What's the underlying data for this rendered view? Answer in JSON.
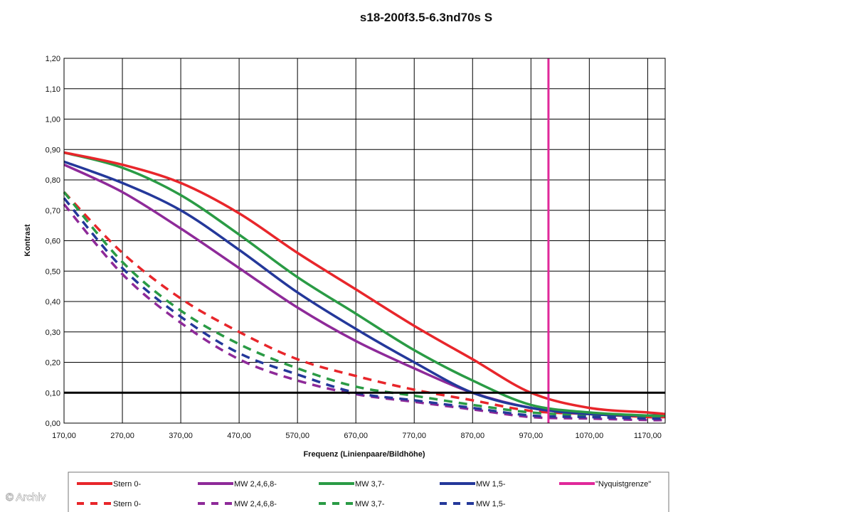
{
  "chart_data": {
    "type": "line",
    "title": "s18-200f3.5-6.3nd70s S",
    "xlabel": "Frequenz (Linienpaare/Bildhöhe)",
    "ylabel": "Kontrast",
    "xlim": [
      170,
      1200
    ],
    "ylim": [
      0,
      1.2
    ],
    "x_ticks": [
      170,
      270,
      370,
      470,
      570,
      670,
      770,
      870,
      970,
      1070,
      1170
    ],
    "x_tick_labels": [
      "170,00",
      "270,00",
      "370,00",
      "470,00",
      "570,00",
      "670,00",
      "770,00",
      "870,00",
      "970,00",
      "1070,00",
      "1170,00"
    ],
    "y_ticks": [
      0,
      0.1,
      0.2,
      0.3,
      0.4,
      0.5,
      0.6,
      0.7,
      0.8,
      0.9,
      1.0,
      1.1,
      1.2
    ],
    "y_tick_labels": [
      "0,00",
      "0,10",
      "0,20",
      "0,30",
      "0,40",
      "0,50",
      "0,60",
      "0,70",
      "0,80",
      "0,90",
      "1,00",
      "1,10",
      "1,20"
    ],
    "grid": true,
    "legend_position": "bottom",
    "x": [
      170,
      270,
      370,
      470,
      570,
      670,
      770,
      870,
      970,
      1070,
      1170,
      1200
    ],
    "series": [
      {
        "name": "Stern 0-",
        "color": "#e8262b",
        "dash": false,
        "values": [
          0.89,
          0.85,
          0.79,
          0.69,
          0.56,
          0.44,
          0.32,
          0.21,
          0.1,
          0.05,
          0.035,
          0.03
        ]
      },
      {
        "name": "MW 2,4,6,8-",
        "color": "#8e2a99",
        "dash": false,
        "values": [
          0.85,
          0.76,
          0.64,
          0.51,
          0.38,
          0.27,
          0.18,
          0.1,
          0.05,
          0.03,
          0.025,
          0.025
        ]
      },
      {
        "name": "MW 3,7-",
        "color": "#2a9b45",
        "dash": false,
        "values": [
          0.89,
          0.84,
          0.75,
          0.62,
          0.48,
          0.36,
          0.24,
          0.14,
          0.06,
          0.035,
          0.025,
          0.025
        ]
      },
      {
        "name": "MW 1,5-",
        "color": "#24389a",
        "dash": false,
        "values": [
          0.86,
          0.79,
          0.7,
          0.57,
          0.43,
          0.31,
          0.2,
          0.1,
          0.05,
          0.03,
          0.025,
          0.03
        ]
      },
      {
        "name": "Stern 0-",
        "color": "#e8262b",
        "dash": true,
        "values": [
          0.76,
          0.56,
          0.41,
          0.3,
          0.21,
          0.155,
          0.11,
          0.075,
          0.04,
          0.03,
          0.02,
          0.02
        ]
      },
      {
        "name": "MW 2,4,6,8-",
        "color": "#8e2a99",
        "dash": true,
        "values": [
          0.72,
          0.49,
          0.33,
          0.21,
          0.14,
          0.095,
          0.07,
          0.045,
          0.02,
          0.015,
          0.01,
          0.01
        ]
      },
      {
        "name": "MW 3,7-",
        "color": "#2a9b45",
        "dash": true,
        "values": [
          0.76,
          0.53,
          0.37,
          0.26,
          0.18,
          0.12,
          0.09,
          0.06,
          0.035,
          0.025,
          0.02,
          0.02
        ]
      },
      {
        "name": "MW 1,5-",
        "color": "#24389a",
        "dash": true,
        "values": [
          0.74,
          0.51,
          0.35,
          0.23,
          0.16,
          0.1,
          0.075,
          0.05,
          0.025,
          0.02,
          0.015,
          0.015
        ]
      }
    ],
    "reference_lines": [
      {
        "name": "\"Nyquistgrenze\"",
        "orientation": "vertical",
        "value": 1000,
        "color": "#e0289a"
      },
      {
        "orientation": "horizontal",
        "value": 0.1,
        "color": "#000000"
      }
    ]
  },
  "watermark": "© Archiv"
}
